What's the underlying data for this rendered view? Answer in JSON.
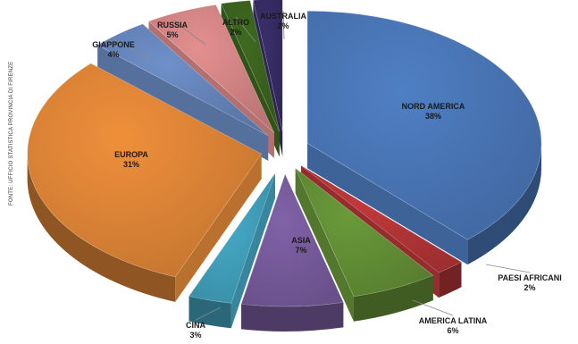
{
  "source_note": "FONTE: UFFICIO STATISTICA PROVINCIA DI FIRENZE",
  "chart_data": {
    "type": "pie",
    "title": "",
    "value_suffix": "%",
    "slices": [
      {
        "label": "NORD AMERICA",
        "value": 38,
        "color": "#4f7fc4"
      },
      {
        "label": "PAESI AFRICANI",
        "value": 2,
        "color": "#c0393b"
      },
      {
        "label": "AMERICA LATINA",
        "value": 6,
        "color": "#6a9a3a"
      },
      {
        "label": "ASIA",
        "value": 7,
        "color": "#8062a8"
      },
      {
        "label": "CINA",
        "value": 3,
        "color": "#46acc9"
      },
      {
        "label": "EUROPA",
        "value": 31,
        "color": "#ef8f3b"
      },
      {
        "label": "GIAPPONE",
        "value": 4,
        "color": "#6e8fc9"
      },
      {
        "label": "RUSSIA",
        "value": 5,
        "color": "#e48f8f"
      },
      {
        "label": "ALTRO",
        "value": 2,
        "color": "#3f6a20"
      },
      {
        "label": "AUSTRALIA",
        "value": 2,
        "color": "#3b2f6b"
      }
    ]
  }
}
